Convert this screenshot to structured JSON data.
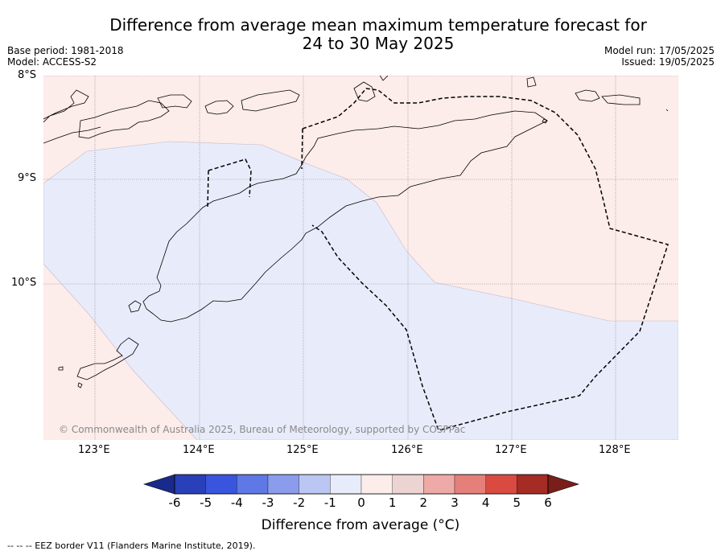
{
  "title": {
    "line1": "Difference from average mean maximum temperature forecast for",
    "line2": "24 to 30 May 2025"
  },
  "meta_left": {
    "base_period": "Base period: 1981-2018",
    "model": "Model: ACCESS-S2"
  },
  "meta_right": {
    "model_run": "Model run: 17/05/2025",
    "issued": "Issued: 19/05/2025"
  },
  "map": {
    "lat_labels": [
      "8°S",
      "9°S",
      "10°S"
    ],
    "lon_labels": [
      "123°E",
      "124°E",
      "125°E",
      "126°E",
      "127°E",
      "128°E"
    ],
    "copyright": "© Commonwealth of Australia 2025, Bureau of Meteorology, supported by COSPPac",
    "region_colors": {
      "positive_0_1": "#fcecea",
      "negative_0_1": "#e8ecfa",
      "land_outline": "#000000",
      "eez_border": "#000000"
    }
  },
  "colorbar": {
    "label": "Difference from average (°C)",
    "ticks": [
      "-6",
      "-5",
      "-4",
      "-3",
      "-2",
      "-1",
      "0",
      "1",
      "2",
      "3",
      "4",
      "5",
      "6"
    ],
    "colors": [
      "#1a2a8a",
      "#2a40b8",
      "#3a55dd",
      "#5f78e6",
      "#8a9ceb",
      "#bcc6f2",
      "#e8ecfa",
      "#fcecea",
      "#ecd4d2",
      "#eeaaa6",
      "#e57f7a",
      "#d94a41",
      "#a52b25",
      "#7a1e1a"
    ]
  },
  "footnote": "-- -- -- EEZ border V11 (Flanders Marine Institute, 2019)."
}
